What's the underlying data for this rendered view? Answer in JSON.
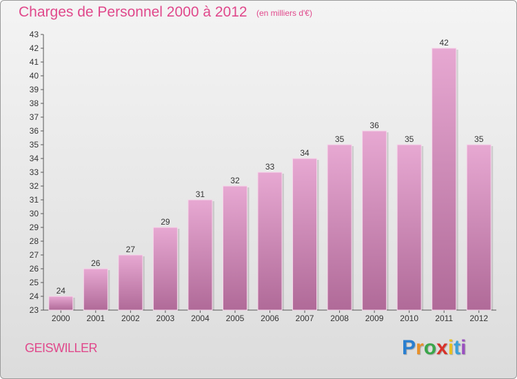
{
  "header": {
    "title": "Charges de Personnel 2000 à 2012",
    "subtitle": "(en milliers d'€)"
  },
  "footer": {
    "place": "GEISWILLER",
    "logo_letters": [
      {
        "ch": "P",
        "color": "#2a7fd0"
      },
      {
        "ch": "r",
        "color": "#e8902a"
      },
      {
        "ch": "o",
        "color": "#3aa64a"
      },
      {
        "ch": "x",
        "color": "#d8322a"
      },
      {
        "ch": "i",
        "color": "#e8c020"
      },
      {
        "ch": "t",
        "color": "#3aa0d8"
      },
      {
        "ch": "i",
        "color": "#9a50c0"
      }
    ]
  },
  "colors": {
    "accent": "#e0488b",
    "bar_top": "#e7a8d2",
    "bar_bottom": "#b06a98"
  },
  "chart_data": {
    "type": "bar",
    "categories": [
      "2000",
      "2001",
      "2002",
      "2003",
      "2004",
      "2005",
      "2006",
      "2007",
      "2008",
      "2009",
      "2010",
      "2011",
      "2012"
    ],
    "values": [
      24,
      26,
      27,
      29,
      31,
      32,
      33,
      34,
      35,
      36,
      35,
      42,
      35
    ],
    "ylim": [
      23,
      43
    ],
    "yticks": [
      23,
      24,
      25,
      26,
      27,
      28,
      29,
      30,
      31,
      32,
      33,
      34,
      35,
      36,
      37,
      38,
      39,
      40,
      41,
      42,
      43
    ],
    "grid": false,
    "data_labels": true
  }
}
